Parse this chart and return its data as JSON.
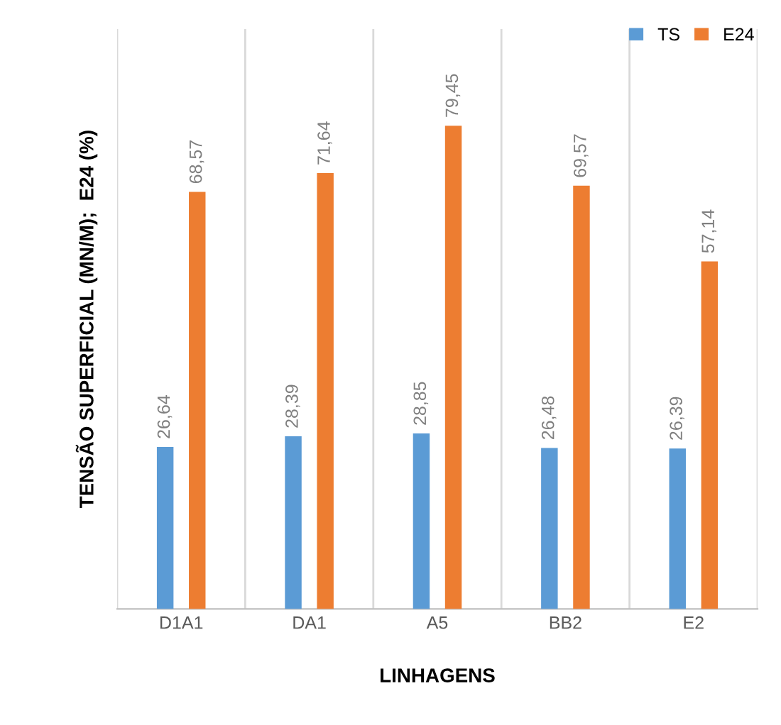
{
  "chart_data": {
    "type": "bar",
    "xlabel": "LINHAGENS",
    "ylabel": "TENSÃO SUPERFICIAL (MN/M);  E24 (%)",
    "categories": [
      "D1A1",
      "DA1",
      "A5",
      "BB2",
      "E2"
    ],
    "series": [
      {
        "name": "TS",
        "color": "#5b9bd5",
        "values": [
          26.64,
          28.39,
          28.85,
          26.48,
          26.39
        ],
        "value_labels": [
          "26,64",
          "28,39",
          "28,85",
          "26,48",
          "26,39"
        ]
      },
      {
        "name": "E24",
        "color": "#ed7d31",
        "values": [
          68.57,
          71.64,
          79.45,
          69.57,
          57.14
        ],
        "value_labels": [
          "68,57",
          "71,64",
          "79,45",
          "69,57",
          "57,14"
        ]
      }
    ],
    "grid": "x",
    "legend": "top right"
  }
}
